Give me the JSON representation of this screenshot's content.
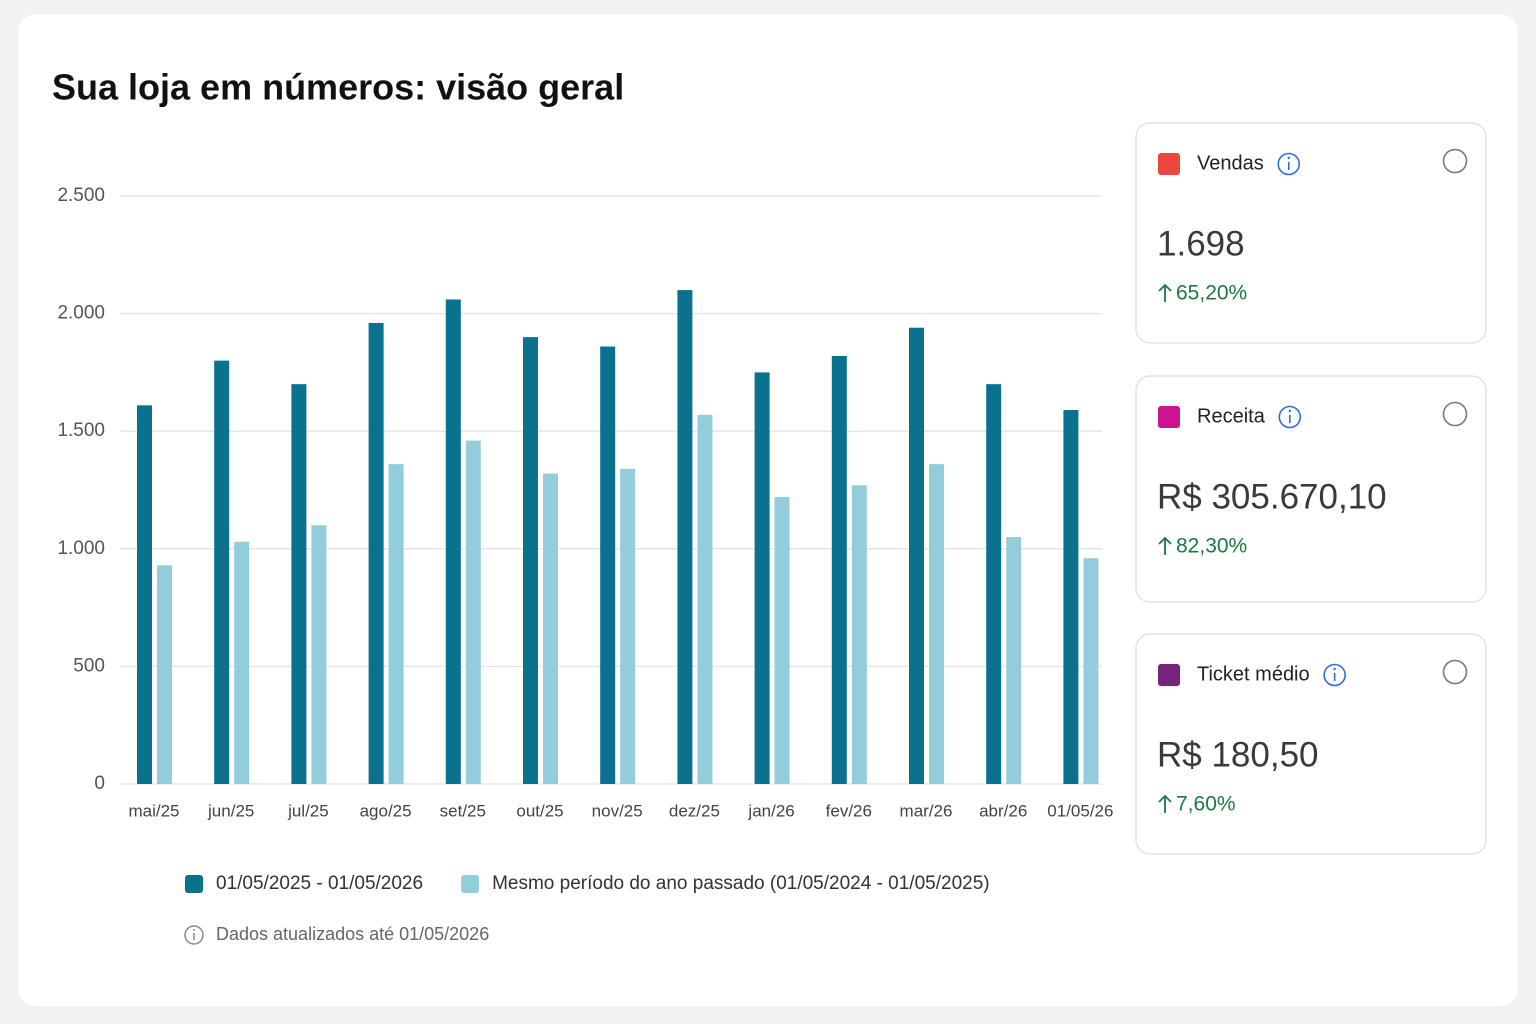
{
  "chart_data": {
    "type": "bar",
    "title": "Sua loja em números: visão geral",
    "categories": [
      "mai/25",
      "jun/25",
      "jul/25",
      "ago/25",
      "set/25",
      "out/25",
      "nov/25",
      "dez/25",
      "jan/26",
      "fev/26",
      "mar/26",
      "abr/26",
      "01/05/26"
    ],
    "series": [
      {
        "name": "01/05/2025 - 01/05/2026",
        "color": "#0a718f",
        "values": [
          1610,
          1800,
          1700,
          1960,
          2060,
          1900,
          1860,
          2100,
          1750,
          1820,
          1940,
          1700,
          1590
        ]
      },
      {
        "name": "Mesmo período do ano passado (01/05/2024 - 01/05/2025)",
        "color": "#93cddb",
        "values": [
          930,
          1030,
          1100,
          1360,
          1460,
          1320,
          1340,
          1570,
          1220,
          1270,
          1360,
          1050,
          960
        ]
      }
    ],
    "ylim": [
      0,
      2500
    ],
    "yticks": [
      0,
      {
        "value": 500,
        "label": "500"
      },
      {
        "value": 1000,
        "label": "1.000"
      },
      {
        "value": 1500,
        "label": "1.500"
      },
      {
        "value": 2000,
        "label": "2.000"
      },
      {
        "value": 2500,
        "label": "2.500"
      }
    ],
    "grid": true,
    "note": "Dados atualizados até 01/05/2026"
  },
  "cards": [
    {
      "title": "Vendas",
      "color": "#e8473f",
      "value": "1.698",
      "change": "65,20%"
    },
    {
      "title": "Receita",
      "color": "#cc1493",
      "value": "R$ 305.670,10",
      "change": "82,30%"
    },
    {
      "title": "Ticket médio",
      "color": "#74267c",
      "value": "R$ 180,50",
      "change": "7,60%"
    }
  ]
}
